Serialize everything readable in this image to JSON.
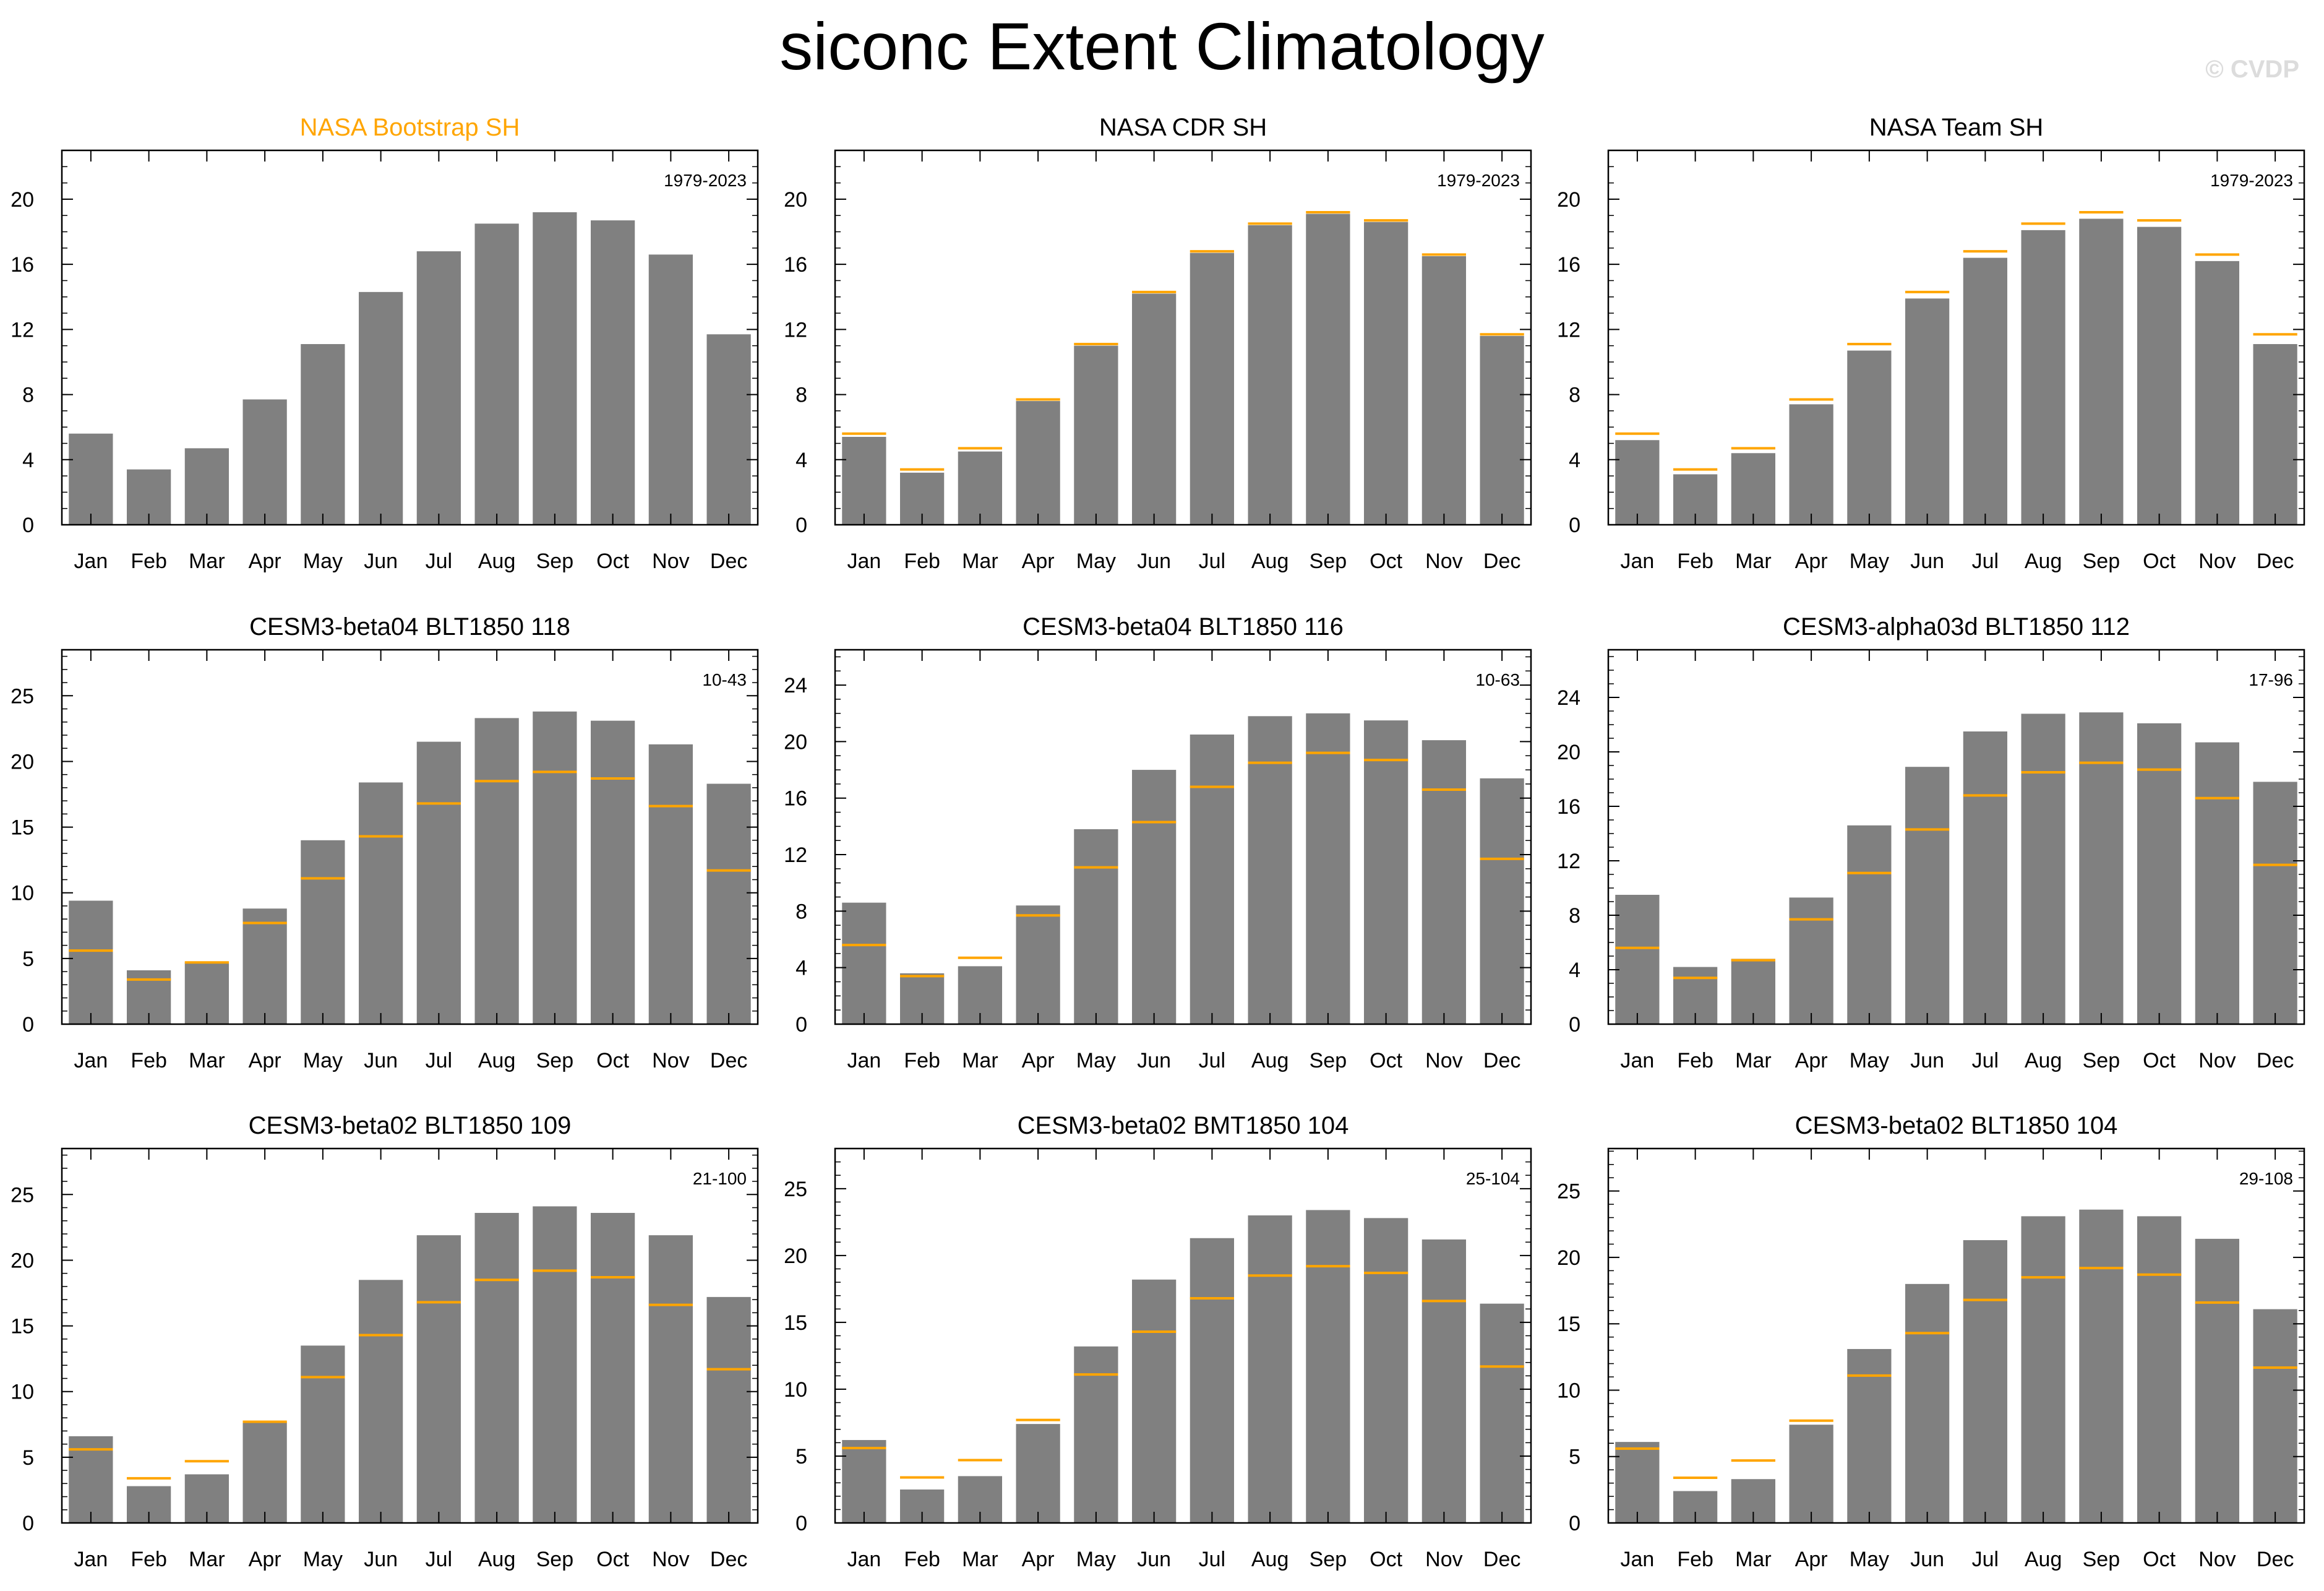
{
  "title": "siconc Extent Climatology",
  "watermark": "© CVDP",
  "colors": {
    "bar": "#808080",
    "obs_line": "#ffa500",
    "highlight_title": "#ffa500",
    "axis": "#000000"
  },
  "reference": {
    "name": "NASA Bootstrap SH",
    "values": [
      5.6,
      3.4,
      4.7,
      7.7,
      11.1,
      14.3,
      16.8,
      18.5,
      19.2,
      18.7,
      16.6,
      11.7
    ]
  },
  "chart_data": [
    {
      "type": "bar",
      "title": "NASA Bootstrap SH",
      "title_highlight": true,
      "years": "1979-2023",
      "categories": [
        "Jan",
        "Feb",
        "Mar",
        "Apr",
        "May",
        "Jun",
        "Jul",
        "Aug",
        "Sep",
        "Oct",
        "Nov",
        "Dec"
      ],
      "values": [
        5.6,
        3.4,
        4.7,
        7.7,
        11.1,
        14.3,
        16.8,
        18.5,
        19.2,
        18.7,
        16.6,
        11.7
      ],
      "show_ref": false,
      "ylim": [
        0,
        23
      ],
      "yticks": [
        0,
        4,
        8,
        12,
        16,
        20
      ]
    },
    {
      "type": "bar",
      "title": "NASA CDR SH",
      "title_highlight": false,
      "years": "1979-2023",
      "categories": [
        "Jan",
        "Feb",
        "Mar",
        "Apr",
        "May",
        "Jun",
        "Jul",
        "Aug",
        "Sep",
        "Oct",
        "Nov",
        "Dec"
      ],
      "values": [
        5.4,
        3.2,
        4.5,
        7.6,
        11.0,
        14.2,
        16.7,
        18.4,
        19.1,
        18.6,
        16.5,
        11.6
      ],
      "show_ref": true,
      "ylim": [
        0,
        23
      ],
      "yticks": [
        0,
        4,
        8,
        12,
        16,
        20
      ]
    },
    {
      "type": "bar",
      "title": "NASA Team SH",
      "title_highlight": false,
      "years": "1979-2023",
      "categories": [
        "Jan",
        "Feb",
        "Mar",
        "Apr",
        "May",
        "Jun",
        "Jul",
        "Aug",
        "Sep",
        "Oct",
        "Nov",
        "Dec"
      ],
      "values": [
        5.2,
        3.1,
        4.4,
        7.4,
        10.7,
        13.9,
        16.4,
        18.1,
        18.8,
        18.3,
        16.2,
        11.1
      ],
      "show_ref": true,
      "ylim": [
        0,
        23
      ],
      "yticks": [
        0,
        4,
        8,
        12,
        16,
        20
      ]
    },
    {
      "type": "bar",
      "title": "CESM3-beta04 BLT1850 118",
      "title_highlight": false,
      "years": "10-43",
      "categories": [
        "Jan",
        "Feb",
        "Mar",
        "Apr",
        "May",
        "Jun",
        "Jul",
        "Aug",
        "Sep",
        "Oct",
        "Nov",
        "Dec"
      ],
      "values": [
        9.4,
        4.1,
        4.7,
        8.8,
        14.0,
        18.4,
        21.5,
        23.3,
        23.8,
        23.1,
        21.3,
        18.3
      ],
      "show_ref": true,
      "ylim": [
        0,
        28.5
      ],
      "yticks": [
        0,
        5,
        10,
        15,
        20,
        25
      ]
    },
    {
      "type": "bar",
      "title": "CESM3-beta04 BLT1850 116",
      "title_highlight": false,
      "years": "10-63",
      "categories": [
        "Jan",
        "Feb",
        "Mar",
        "Apr",
        "May",
        "Jun",
        "Jul",
        "Aug",
        "Sep",
        "Oct",
        "Nov",
        "Dec"
      ],
      "values": [
        8.6,
        3.6,
        4.1,
        8.4,
        13.8,
        18.0,
        20.5,
        21.8,
        22.0,
        21.5,
        20.1,
        17.4
      ],
      "show_ref": true,
      "ylim": [
        0,
        26.5
      ],
      "yticks": [
        0,
        4,
        8,
        12,
        16,
        20,
        24
      ]
    },
    {
      "type": "bar",
      "title": "CESM3-alpha03d BLT1850 112",
      "title_highlight": false,
      "years": "17-96",
      "categories": [
        "Jan",
        "Feb",
        "Mar",
        "Apr",
        "May",
        "Jun",
        "Jul",
        "Aug",
        "Sep",
        "Oct",
        "Nov",
        "Dec"
      ],
      "values": [
        9.5,
        4.2,
        4.8,
        9.3,
        14.6,
        18.9,
        21.5,
        22.8,
        22.9,
        22.1,
        20.7,
        17.8
      ],
      "show_ref": true,
      "ylim": [
        0,
        27.5
      ],
      "yticks": [
        0,
        4,
        8,
        12,
        16,
        20,
        24
      ]
    },
    {
      "type": "bar",
      "title": "CESM3-beta02 BLT1850 109",
      "title_highlight": false,
      "years": "21-100",
      "categories": [
        "Jan",
        "Feb",
        "Mar",
        "Apr",
        "May",
        "Jun",
        "Jul",
        "Aug",
        "Sep",
        "Oct",
        "Nov",
        "Dec"
      ],
      "values": [
        6.6,
        2.8,
        3.7,
        7.7,
        13.5,
        18.5,
        21.9,
        23.6,
        24.1,
        23.6,
        21.9,
        17.2
      ],
      "show_ref": true,
      "ylim": [
        0,
        28.5
      ],
      "yticks": [
        0,
        5,
        10,
        15,
        20,
        25
      ]
    },
    {
      "type": "bar",
      "title": "CESM3-beta02 BMT1850 104",
      "title_highlight": false,
      "years": "25-104",
      "categories": [
        "Jan",
        "Feb",
        "Mar",
        "Apr",
        "May",
        "Jun",
        "Jul",
        "Aug",
        "Sep",
        "Oct",
        "Nov",
        "Dec"
      ],
      "values": [
        6.2,
        2.5,
        3.5,
        7.4,
        13.2,
        18.2,
        21.3,
        23.0,
        23.4,
        22.8,
        21.2,
        16.4
      ],
      "show_ref": true,
      "ylim": [
        0,
        28
      ],
      "yticks": [
        0,
        5,
        10,
        15,
        20,
        25
      ]
    },
    {
      "type": "bar",
      "title": "CESM3-beta02 BLT1850 104",
      "title_highlight": false,
      "years": "29-108",
      "categories": [
        "Jan",
        "Feb",
        "Mar",
        "Apr",
        "May",
        "Jun",
        "Jul",
        "Aug",
        "Sep",
        "Oct",
        "Nov",
        "Dec"
      ],
      "values": [
        6.1,
        2.4,
        3.3,
        7.4,
        13.1,
        18.0,
        21.3,
        23.1,
        23.6,
        23.1,
        21.4,
        16.1
      ],
      "show_ref": true,
      "ylim": [
        0,
        28.2
      ],
      "yticks": [
        0,
        5,
        10,
        15,
        20,
        25
      ]
    }
  ]
}
